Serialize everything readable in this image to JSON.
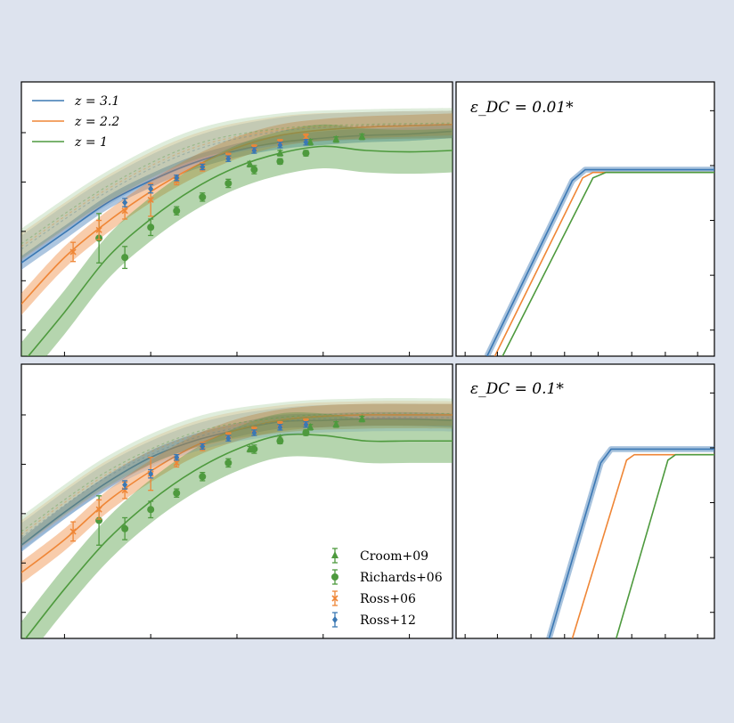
{
  "colors": {
    "blue": "#3b78b4",
    "orange": "#ef8636",
    "green": "#4e9a3e",
    "background": "#dde3ee"
  },
  "legend_top": [
    {
      "label": "z = 3.1",
      "color": "#3b78b4"
    },
    {
      "label": "z = 2.2",
      "color": "#ef8636"
    },
    {
      "label": "z = 1",
      "color": "#4e9a3e"
    }
  ],
  "legend_bottom": [
    {
      "label": "Croom+09",
      "color": "#4e9a3e",
      "marker": "triangle"
    },
    {
      "label": "Richards+06",
      "color": "#4e9a3e",
      "marker": "circle"
    },
    {
      "label": "Ross+06",
      "color": "#ef8636",
      "marker": "x"
    },
    {
      "label": "Ross+12",
      "color": "#3b78b4",
      "marker": "diamond"
    }
  ],
  "annotations": {
    "top_right": "ε_DC = 0.01*",
    "bottom_right": "ε_DC = 0.1*"
  },
  "chart_data": [
    {
      "type": "line",
      "panel": "top-left",
      "xlim": [
        0,
        10
      ],
      "ylim": [
        0,
        10
      ],
      "grid": false,
      "legend_placement": "top-left",
      "series": [
        {
          "name": "z = 3.1",
          "color": "#3b78b4",
          "band": 0.25,
          "x": [
            0,
            1,
            2,
            3,
            4,
            5,
            6,
            7,
            8,
            9,
            10
          ],
          "y": [
            3.4,
            4.5,
            5.6,
            6.4,
            7.05,
            7.5,
            7.8,
            7.95,
            8.05,
            8.1,
            8.2
          ]
        },
        {
          "name": "z = 2.2",
          "color": "#ef8636",
          "band": 0.4,
          "x": [
            0,
            1,
            2,
            3,
            4,
            5,
            6,
            7,
            8,
            9,
            10
          ],
          "y": [
            1.9,
            3.6,
            4.9,
            6.0,
            6.9,
            7.6,
            8.05,
            8.25,
            8.35,
            8.4,
            8.45
          ]
        },
        {
          "name": "z = 1",
          "color": "#4e9a3e",
          "band": 0.8,
          "x": [
            0,
            1,
            2,
            3,
            4,
            5,
            6,
            7,
            8,
            9,
            10
          ],
          "y": [
            -0.3,
            1.6,
            3.6,
            5.0,
            6.1,
            6.9,
            7.4,
            7.65,
            7.5,
            7.45,
            7.5
          ]
        },
        {
          "name": "model-blue",
          "color": "#3b78b4",
          "faint": true,
          "band": 0.5,
          "x": [
            0,
            2,
            4,
            6,
            8,
            10
          ],
          "y": [
            3.9,
            6.0,
            7.5,
            8.2,
            8.4,
            8.45
          ]
        },
        {
          "name": "model-orange",
          "color": "#ef8636",
          "faint": true,
          "band": 0.5,
          "x": [
            0,
            2,
            4,
            6,
            8,
            10
          ],
          "y": [
            4.0,
            6.1,
            7.6,
            8.25,
            8.4,
            8.45
          ]
        },
        {
          "name": "model-green",
          "color": "#4e9a3e",
          "faint": true,
          "band": 0.55,
          "x": [
            0,
            2,
            4,
            6,
            8,
            10
          ],
          "y": [
            4.1,
            6.2,
            7.7,
            8.3,
            8.45,
            8.5
          ]
        }
      ],
      "points": [
        {
          "set": "Croom+09",
          "marker": "triangle",
          "color": "#4e9a3e",
          "x": [
            5.3,
            6.0,
            6.7,
            7.3,
            7.9
          ],
          "y": [
            7.0,
            7.4,
            7.8,
            7.9,
            8.0
          ],
          "err": [
            0.1,
            0.1,
            0.1,
            0.1,
            0.1
          ]
        },
        {
          "set": "Richards+06",
          "marker": "circle",
          "color": "#4e9a3e",
          "x": [
            1.8,
            2.4,
            3.0,
            3.6,
            4.2,
            4.8,
            5.4,
            6.0,
            6.6
          ],
          "y": [
            4.3,
            3.6,
            4.7,
            5.3,
            5.8,
            6.3,
            6.8,
            7.1,
            7.4
          ],
          "err": [
            0.9,
            0.4,
            0.3,
            0.15,
            0.15,
            0.15,
            0.15,
            0.1,
            0.1
          ]
        },
        {
          "set": "Ross+06",
          "marker": "x",
          "color": "#ef8636",
          "x": [
            1.2,
            1.8,
            2.4,
            3.0,
            3.6,
            4.2,
            4.8,
            5.4,
            6.0,
            6.6
          ],
          "y": [
            3.8,
            4.6,
            5.3,
            5.7,
            6.4,
            6.9,
            7.3,
            7.6,
            7.8,
            8.0
          ],
          "err": [
            0.35,
            0.35,
            0.3,
            0.6,
            0.15,
            0.15,
            0.1,
            0.1,
            0.1,
            0.1
          ]
        },
        {
          "set": "Ross+12",
          "marker": "diamond",
          "color": "#3b78b4",
          "x": [
            2.4,
            3.0,
            3.6,
            4.2,
            4.8,
            5.4,
            6.0,
            6.6
          ],
          "y": [
            5.6,
            6.1,
            6.5,
            6.9,
            7.2,
            7.5,
            7.7,
            7.8
          ],
          "err": [
            0.15,
            0.15,
            0.1,
            0.1,
            0.1,
            0.1,
            0.1,
            0.1
          ]
        }
      ]
    },
    {
      "type": "line",
      "panel": "top-right",
      "xlim": [
        0,
        10
      ],
      "ylim": [
        0,
        10
      ],
      "grid": false,
      "series": [
        {
          "name": "z = 3.1",
          "color": "#3b78b4",
          "band": 0.22,
          "x": [
            1.2,
            4.5,
            5.0,
            5.5,
            10
          ],
          "y": [
            0,
            6.4,
            6.8,
            6.8,
            6.8
          ]
        },
        {
          "name": "z = 2.2",
          "color": "#ef8636",
          "band": 0,
          "x": [
            1.5,
            4.9,
            5.3,
            10
          ],
          "y": [
            0,
            6.5,
            6.7,
            6.7
          ]
        },
        {
          "name": "z = 1",
          "color": "#4e9a3e",
          "band": 0,
          "x": [
            1.8,
            5.3,
            5.8,
            10
          ],
          "y": [
            0,
            6.5,
            6.7,
            6.7
          ]
        }
      ]
    },
    {
      "type": "line",
      "panel": "bottom-left",
      "xlim": [
        0,
        10
      ],
      "ylim": [
        0,
        10
      ],
      "grid": false,
      "legend_placement": "bottom-right",
      "series": [
        {
          "name": "z = 3.1",
          "color": "#3b78b4",
          "band": 0.25,
          "x": [
            0,
            1,
            2,
            3,
            4,
            5,
            6,
            7,
            8,
            9,
            10
          ],
          "y": [
            3.4,
            4.6,
            5.7,
            6.6,
            7.2,
            7.6,
            7.9,
            7.95,
            8.0,
            8.0,
            7.95
          ]
        },
        {
          "name": "z = 2.2",
          "color": "#ef8636",
          "band": 0.4,
          "x": [
            0,
            1,
            2,
            3,
            4,
            5,
            6,
            7,
            8,
            9,
            10
          ],
          "y": [
            2.4,
            3.6,
            5.0,
            6.1,
            7.0,
            7.6,
            7.95,
            8.1,
            8.15,
            8.15,
            8.15
          ]
        },
        {
          "name": "z = 1",
          "color": "#4e9a3e",
          "band": 0.8,
          "x": [
            0,
            1,
            2,
            3,
            4,
            5,
            6,
            7,
            8,
            9,
            10
          ],
          "y": [
            -0.2,
            1.8,
            3.6,
            5.0,
            6.1,
            6.9,
            7.4,
            7.4,
            7.2,
            7.2,
            7.2
          ]
        },
        {
          "name": "model-blue",
          "color": "#3b78b4",
          "faint": true,
          "band": 0.5,
          "x": [
            0,
            2,
            4,
            6,
            8,
            10
          ],
          "y": [
            3.7,
            5.9,
            7.3,
            7.9,
            8.05,
            8.05
          ]
        },
        {
          "name": "model-orange",
          "color": "#ef8636",
          "faint": true,
          "band": 0.5,
          "x": [
            0,
            2,
            4,
            6,
            8,
            10
          ],
          "y": [
            3.8,
            6.0,
            7.4,
            8.0,
            8.15,
            8.15
          ]
        },
        {
          "name": "model-green",
          "color": "#4e9a3e",
          "faint": true,
          "band": 0.55,
          "x": [
            0,
            2,
            4,
            6,
            8,
            10
          ],
          "y": [
            3.9,
            6.1,
            7.5,
            8.05,
            8.2,
            8.2
          ]
        }
      ],
      "points": [
        {
          "set": "Croom+09",
          "marker": "triangle",
          "color": "#4e9a3e",
          "x": [
            5.3,
            6.0,
            6.7,
            7.3,
            7.9
          ],
          "y": [
            6.9,
            7.3,
            7.7,
            7.8,
            8.0
          ],
          "err": [
            0.1,
            0.1,
            0.1,
            0.1,
            0.1
          ]
        },
        {
          "set": "Richards+06",
          "marker": "circle",
          "color": "#4e9a3e",
          "x": [
            1.8,
            2.4,
            3.0,
            3.6,
            4.2,
            4.8,
            5.4,
            6.0,
            6.6
          ],
          "y": [
            4.3,
            4.0,
            4.7,
            5.3,
            5.9,
            6.4,
            6.9,
            7.2,
            7.5
          ],
          "err": [
            0.9,
            0.4,
            0.3,
            0.15,
            0.15,
            0.15,
            0.15,
            0.1,
            0.1
          ]
        },
        {
          "set": "Ross+06",
          "marker": "x",
          "color": "#ef8636",
          "x": [
            1.2,
            1.8,
            2.4,
            3.0,
            3.6,
            4.2,
            4.8,
            5.4,
            6.0,
            6.6
          ],
          "y": [
            3.9,
            4.7,
            5.4,
            6.0,
            6.4,
            7.0,
            7.4,
            7.6,
            7.8,
            7.9
          ],
          "err": [
            0.35,
            0.35,
            0.3,
            0.6,
            0.15,
            0.15,
            0.1,
            0.1,
            0.1,
            0.1
          ]
        },
        {
          "set": "Ross+12",
          "marker": "diamond",
          "color": "#3b78b4",
          "x": [
            2.4,
            3.0,
            3.6,
            4.2,
            4.8,
            5.4,
            6.0,
            6.6
          ],
          "y": [
            5.6,
            6.0,
            6.6,
            7.0,
            7.3,
            7.5,
            7.7,
            7.8
          ],
          "err": [
            0.15,
            0.15,
            0.1,
            0.1,
            0.1,
            0.1,
            0.1,
            0.1
          ]
        }
      ]
    },
    {
      "type": "line",
      "panel": "bottom-right",
      "xlim": [
        0,
        10
      ],
      "ylim": [
        0,
        10
      ],
      "grid": false,
      "series": [
        {
          "name": "z = 3.1",
          "color": "#3b78b4",
          "band": 0.22,
          "x": [
            3.6,
            5.6,
            6.0,
            6.4,
            10
          ],
          "y": [
            0,
            6.4,
            6.9,
            6.9,
            6.9
          ]
        },
        {
          "name": "z = 2.2",
          "color": "#ef8636",
          "band": 0,
          "x": [
            4.5,
            6.6,
            6.9,
            10
          ],
          "y": [
            0,
            6.5,
            6.7,
            6.7
          ]
        },
        {
          "name": "z = 1",
          "color": "#4e9a3e",
          "band": 0,
          "x": [
            6.2,
            8.2,
            8.5,
            10
          ],
          "y": [
            0,
            6.5,
            6.7,
            6.7
          ]
        }
      ]
    }
  ]
}
